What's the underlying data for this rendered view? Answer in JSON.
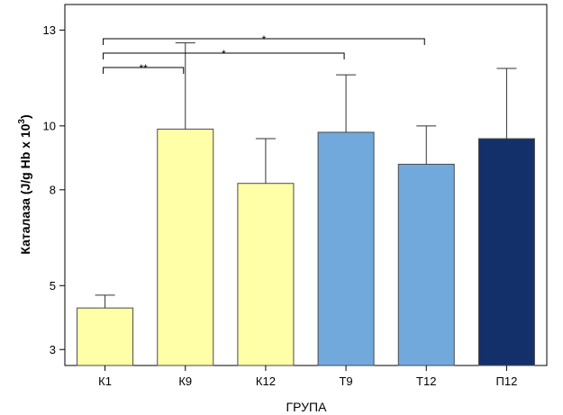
{
  "chart_data": {
    "type": "bar",
    "xlabel": "ГРУПА",
    "ylabel": "Каталаза (J/g Hb x 10",
    "ylabel_superscript": "3",
    "ylabel_close": ")",
    "ylim": [
      2.5,
      13.8
    ],
    "yticks": [
      3,
      5,
      8,
      10,
      13
    ],
    "ytick_labels": [
      "3",
      "5",
      "8",
      "10",
      "13"
    ],
    "categories": [
      "К1",
      "К9",
      "К12",
      "Т9",
      "Т12",
      "П12"
    ],
    "values": [
      4.3,
      9.9,
      8.2,
      9.8,
      8.8,
      9.6
    ],
    "error_upper": [
      4.7,
      12.6,
      9.6,
      11.6,
      10.0,
      11.8
    ],
    "colors": [
      "#ffffa8",
      "#ffffa8",
      "#ffffa8",
      "#71a9dd",
      "#71a9dd",
      "#14306a"
    ],
    "bar_outline": "#4a4a4a",
    "grid": false,
    "legend": "none",
    "significance": [
      {
        "from": 0,
        "to": 1,
        "label": "**"
      },
      {
        "from": 0,
        "to": 3,
        "label": "*"
      },
      {
        "from": 0,
        "to": 4,
        "label": "*"
      }
    ]
  }
}
